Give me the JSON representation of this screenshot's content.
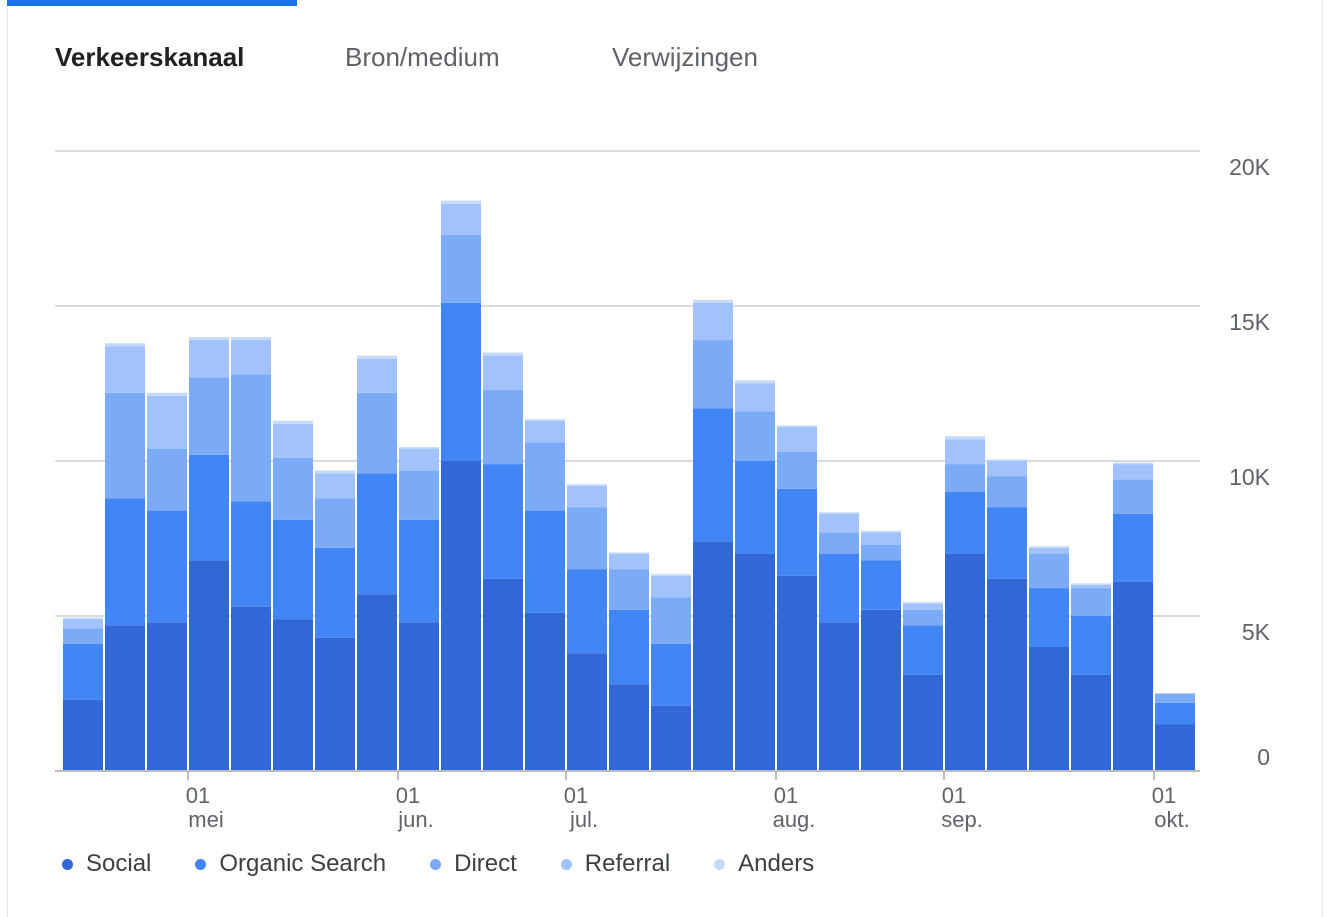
{
  "tabs": [
    {
      "label": "Verkeerskanaal",
      "active": true
    },
    {
      "label": "Bron/medium",
      "active": false
    },
    {
      "label": "Verwijzingen",
      "active": false
    }
  ],
  "colors": {
    "Social": "#3367d6",
    "Organic Search": "#4285f4",
    "Direct": "#7baaf7",
    "Referral": "#a1c2fa",
    "Anders": "#c6dafc",
    "grid": "#dadce0",
    "axis_text": "#5f6368"
  },
  "chart_data": {
    "type": "bar",
    "stacked": true,
    "x_axis_type": "weekly",
    "ylim": [
      0,
      20000
    ],
    "y_ticks": [
      0,
      5000,
      10000,
      15000,
      20000
    ],
    "y_tick_labels": [
      "0",
      "5K",
      "10K",
      "15K",
      "20K"
    ],
    "x_tick_labels": [
      {
        "day": "01",
        "month": "mei",
        "after_bar": 2
      },
      {
        "day": "01",
        "month": "jun.",
        "after_bar": 7
      },
      {
        "day": "01",
        "month": "jul.",
        "after_bar": 11
      },
      {
        "day": "01",
        "month": "aug.",
        "after_bar": 16
      },
      {
        "day": "01",
        "month": "sep.",
        "after_bar": 20
      },
      {
        "day": "01",
        "month": "okt.",
        "after_bar": 25
      }
    ],
    "grid": true,
    "legend_position": "bottom-left",
    "series": [
      {
        "name": "Social",
        "values": [
          2300,
          4700,
          4800,
          6800,
          5300,
          4900,
          4300,
          5700,
          4800,
          10000,
          6200,
          5100,
          3800,
          2800,
          2100,
          7400,
          7000,
          6300,
          4800,
          5200,
          3100,
          7000,
          6200,
          4000,
          3100,
          6100,
          1500
        ]
      },
      {
        "name": "Organic Search",
        "values": [
          1800,
          4100,
          3600,
          3400,
          3400,
          3200,
          2900,
          3900,
          3300,
          5100,
          3700,
          3300,
          2700,
          2400,
          2000,
          4300,
          3000,
          2800,
          2200,
          1600,
          1600,
          2000,
          2300,
          1900,
          1900,
          2200,
          700
        ]
      },
      {
        "name": "Direct",
        "values": [
          500,
          3400,
          2000,
          2500,
          4100,
          2000,
          1600,
          2600,
          1600,
          2200,
          2400,
          2200,
          2000,
          1300,
          1500,
          2200,
          1600,
          1200,
          700,
          500,
          500,
          900,
          1000,
          1100,
          900,
          1100,
          300
        ]
      },
      {
        "name": "Referral",
        "values": [
          300,
          1500,
          1700,
          1200,
          1100,
          1100,
          800,
          1100,
          700,
          1000,
          1100,
          700,
          700,
          500,
          700,
          1200,
          900,
          800,
          600,
          400,
          200,
          800,
          500,
          200,
          100,
          500,
          0
        ]
      },
      {
        "name": "Anders",
        "values": [
          50,
          100,
          100,
          100,
          100,
          100,
          100,
          100,
          50,
          100,
          100,
          50,
          50,
          50,
          50,
          100,
          100,
          50,
          50,
          50,
          50,
          100,
          50,
          50,
          50,
          50,
          0
        ]
      }
    ]
  }
}
